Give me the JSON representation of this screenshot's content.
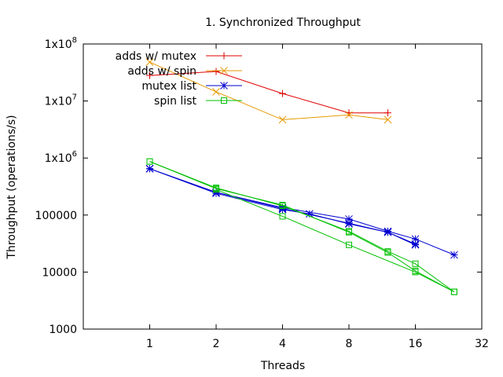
{
  "chart_data": {
    "type": "line",
    "title": "1. Synchronized Throughput",
    "xlabel": "Threads",
    "ylabel": "Throughput (operations/s)",
    "x_scale": "log2",
    "y_scale": "log10",
    "xlim": [
      0.5,
      32
    ],
    "ylim": [
      1000,
      100000000
    ],
    "x_ticks": [
      {
        "value": 1,
        "label": "1"
      },
      {
        "value": 2,
        "label": "2"
      },
      {
        "value": 4,
        "label": "4"
      },
      {
        "value": 8,
        "label": "8"
      },
      {
        "value": 16,
        "label": "16"
      },
      {
        "value": 32,
        "label": "32"
      }
    ],
    "y_ticks": [
      {
        "value": 1000,
        "label": "1000",
        "base": "",
        "exp": ""
      },
      {
        "value": 10000,
        "label": "10000",
        "base": "",
        "exp": ""
      },
      {
        "value": 100000,
        "label": "100000",
        "base": "",
        "exp": ""
      },
      {
        "value": 1000000,
        "label": "",
        "base": "1x10",
        "exp": "6"
      },
      {
        "value": 10000000,
        "label": "",
        "base": "1x10",
        "exp": "7"
      },
      {
        "value": 100000000,
        "label": "",
        "base": "1x10",
        "exp": "8"
      }
    ],
    "grid": false,
    "legend_position": "top-left",
    "series": [
      {
        "name": "adds w/ mutex",
        "color": "#e00000",
        "marker": "plus",
        "points": [
          [
            1,
            28000000
          ],
          [
            2,
            33000000
          ],
          [
            4,
            13500000
          ],
          [
            8,
            6200000
          ],
          [
            12,
            6200000
          ]
        ]
      },
      {
        "name": "adds w/ spin",
        "color": "#e69a00",
        "marker": "cross",
        "points": [
          [
            1,
            48000000
          ],
          [
            2,
            14500000
          ],
          [
            4,
            4700000
          ],
          [
            8,
            5700000
          ],
          [
            12,
            4700000
          ]
        ]
      },
      {
        "name": "mutex list",
        "color": "#0000d0",
        "marker": "star",
        "points": [
          [
            1,
            650000
          ],
          [
            2,
            250000
          ],
          [
            4,
            135000
          ],
          [
            8,
            85000
          ],
          [
            12,
            52000
          ],
          [
            16,
            38000
          ],
          [
            24,
            20000
          ]
        ],
        "extra_lines": [
          [
            [
              1,
              650000
            ],
            [
              2,
              250000
            ],
            [
              4,
              130000
            ],
            [
              8,
              72000
            ],
            [
              12,
              50000
            ],
            [
              16,
              31000
            ]
          ],
          [
            [
              1,
              650000
            ],
            [
              2,
              240000
            ],
            [
              4,
              125000
            ],
            [
              5.3,
              105000
            ],
            [
              8,
              70000
            ],
            [
              12,
              50000
            ],
            [
              16,
              30000
            ]
          ]
        ]
      },
      {
        "name": "spin list",
        "color": "#00c000",
        "marker": "square",
        "points": [
          [
            1,
            870000
          ],
          [
            2,
            290000
          ],
          [
            4,
            150000
          ],
          [
            8,
            50000
          ],
          [
            12,
            22000
          ],
          [
            16,
            10500
          ],
          [
            24,
            4500
          ]
        ],
        "extra_lines": [
          [
            [
              1,
              870000
            ],
            [
              2,
              300000
            ],
            [
              4,
              145000
            ],
            [
              8,
              52000
            ],
            [
              12,
              23000
            ],
            [
              16,
              14000
            ],
            [
              24,
              4500
            ]
          ],
          [
            [
              2,
              280000
            ],
            [
              4,
              95000
            ],
            [
              8,
              30000
            ],
            [
              16,
              10000
            ],
            [
              24,
              4500
            ]
          ]
        ]
      }
    ]
  }
}
